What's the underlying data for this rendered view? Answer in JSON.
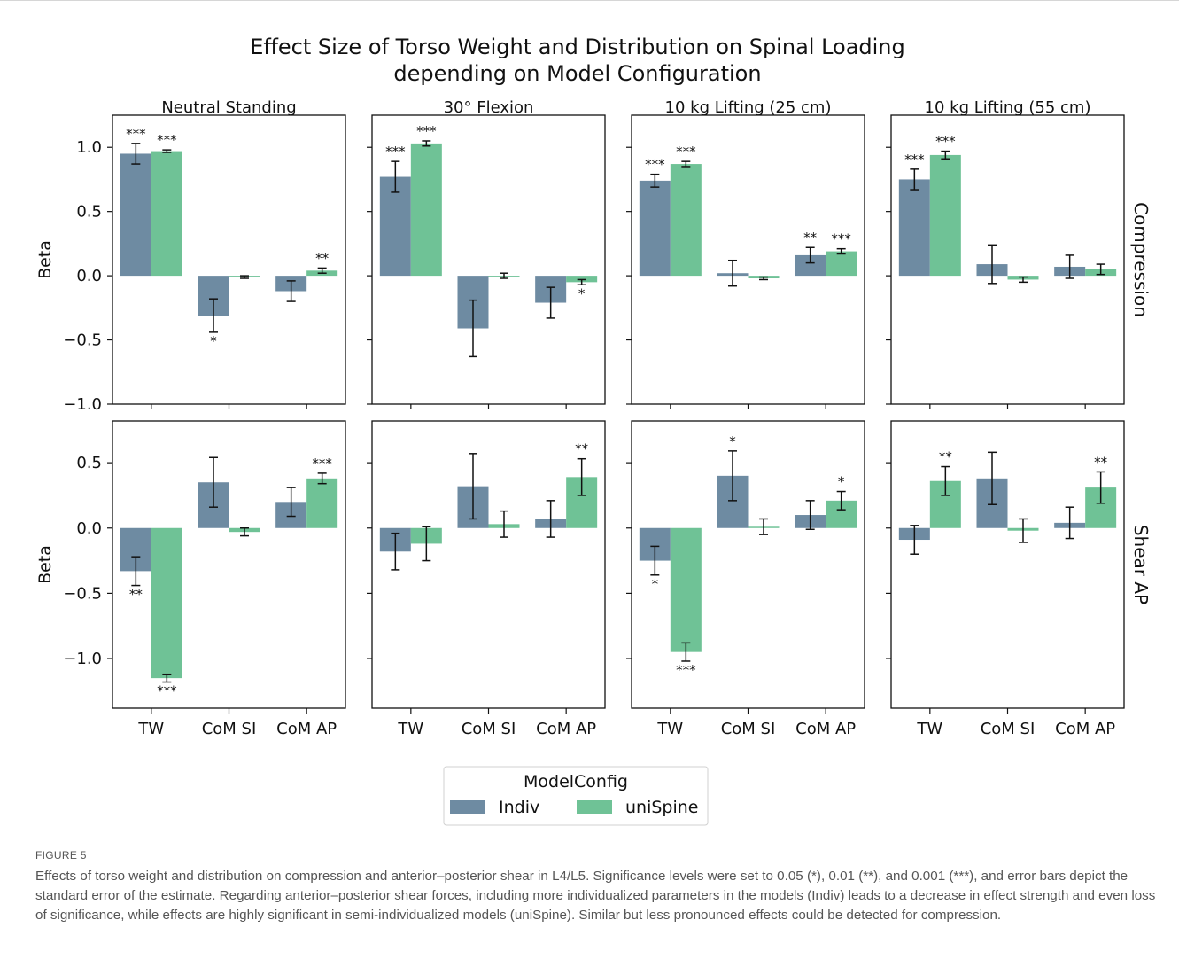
{
  "chart_data": {
    "type": "bar",
    "title": "Effect Size of Torso Weight and Distribution on Spinal Loading depending on Model Configuration",
    "title_lines": [
      "Effect Size of Torso Weight and Distribution on Spinal Loading",
      "depending on Model Configuration"
    ],
    "categories": [
      "TW",
      "CoM SI",
      "CoM AP"
    ],
    "columns": [
      "Neutral Standing",
      "30° Flexion",
      "10 kg Lifting (25 cm)",
      "10 kg Lifting (55 cm)"
    ],
    "rows": [
      "Compression",
      "Shear AP"
    ],
    "ylabel": "Beta",
    "series_names": [
      "Indiv",
      "uniSpine"
    ],
    "legend": {
      "title": "ModelConfig",
      "placement": "bottom-center"
    },
    "colors": {
      "Indiv": "#6e8ba2",
      "uniSpine": "#6fc296"
    },
    "grid": false,
    "panels": [
      {
        "row": "Compression",
        "column": "Neutral Standing",
        "ylim": [
          -1.0,
          1.25
        ],
        "yticks": [
          "1.0",
          "0.5",
          "0.0",
          "−0.5",
          "−1.0"
        ],
        "yticks_values": [
          1.0,
          0.5,
          0.0,
          -0.5,
          -1.0
        ],
        "series": [
          {
            "name": "Indiv",
            "values": [
              0.95,
              -0.31,
              -0.12
            ],
            "err": [
              0.08,
              0.13,
              0.08
            ],
            "sig": [
              "***",
              "*",
              ""
            ]
          },
          {
            "name": "uniSpine",
            "values": [
              0.97,
              -0.01,
              0.04
            ],
            "err": [
              0.01,
              0.01,
              0.02
            ],
            "sig": [
              "***",
              "",
              "**"
            ]
          }
        ]
      },
      {
        "row": "Compression",
        "column": "30° Flexion",
        "ylim": [
          -1.0,
          1.25
        ],
        "yticks": [
          "1.0",
          "0.5",
          "0.0",
          "−0.5",
          "−1.0"
        ],
        "yticks_values": [
          1.0,
          0.5,
          0.0,
          -0.5,
          -1.0
        ],
        "series": [
          {
            "name": "Indiv",
            "values": [
              0.77,
              -0.41,
              -0.21
            ],
            "err": [
              0.12,
              0.22,
              0.12
            ],
            "sig": [
              "***",
              "",
              ""
            ]
          },
          {
            "name": "uniSpine",
            "values": [
              1.03,
              0.0,
              -0.05
            ],
            "err": [
              0.02,
              0.02,
              0.02
            ],
            "sig": [
              "***",
              "",
              "*"
            ]
          }
        ]
      },
      {
        "row": "Compression",
        "column": "10 kg Lifting (25 cm)",
        "ylim": [
          -1.0,
          1.25
        ],
        "yticks": [
          "1.0",
          "0.5",
          "0.0",
          "−0.5",
          "−1.0"
        ],
        "yticks_values": [
          1.0,
          0.5,
          0.0,
          -0.5,
          -1.0
        ],
        "series": [
          {
            "name": "Indiv",
            "values": [
              0.74,
              0.02,
              0.16
            ],
            "err": [
              0.05,
              0.1,
              0.06
            ],
            "sig": [
              "***",
              "",
              "**"
            ]
          },
          {
            "name": "uniSpine",
            "values": [
              0.87,
              -0.02,
              0.19
            ],
            "err": [
              0.02,
              0.01,
              0.02
            ],
            "sig": [
              "***",
              "",
              "***"
            ]
          }
        ]
      },
      {
        "row": "Compression",
        "column": "10 kg Lifting (55 cm)",
        "ylim": [
          -1.0,
          1.25
        ],
        "yticks": [
          "1.0",
          "0.5",
          "0.0",
          "−0.5",
          "−1.0"
        ],
        "yticks_values": [
          1.0,
          0.5,
          0.0,
          -0.5,
          -1.0
        ],
        "series": [
          {
            "name": "Indiv",
            "values": [
              0.75,
              0.09,
              0.07
            ],
            "err": [
              0.08,
              0.15,
              0.09
            ],
            "sig": [
              "***",
              "",
              ""
            ]
          },
          {
            "name": "uniSpine",
            "values": [
              0.94,
              -0.03,
              0.05
            ],
            "err": [
              0.03,
              0.02,
              0.04
            ],
            "sig": [
              "***",
              "",
              ""
            ]
          }
        ]
      },
      {
        "row": "Shear AP",
        "column": "Neutral Standing",
        "ylim": [
          -1.38,
          0.82
        ],
        "yticks": [
          "0.5",
          "0.0",
          "−0.5",
          "−1.0"
        ],
        "yticks_values": [
          0.5,
          0.0,
          -0.5,
          -1.0
        ],
        "series": [
          {
            "name": "Indiv",
            "values": [
              -0.33,
              0.35,
              0.2
            ],
            "err": [
              0.11,
              0.19,
              0.11
            ],
            "sig": [
              "**",
              "",
              ""
            ]
          },
          {
            "name": "uniSpine",
            "values": [
              -1.15,
              -0.03,
              0.38
            ],
            "err": [
              0.03,
              0.03,
              0.04
            ],
            "sig": [
              "***",
              "",
              "***"
            ]
          }
        ]
      },
      {
        "row": "Shear AP",
        "column": "30° Flexion",
        "ylim": [
          -1.38,
          0.82
        ],
        "yticks": [
          "0.5",
          "0.0",
          "−0.5",
          "−1.0"
        ],
        "yticks_values": [
          0.5,
          0.0,
          -0.5,
          -1.0
        ],
        "series": [
          {
            "name": "Indiv",
            "values": [
              -0.18,
              0.32,
              0.07
            ],
            "err": [
              0.14,
              0.25,
              0.14
            ],
            "sig": [
              "",
              "",
              ""
            ]
          },
          {
            "name": "uniSpine",
            "values": [
              -0.12,
              0.03,
              0.39
            ],
            "err": [
              0.13,
              0.1,
              0.14
            ],
            "sig": [
              "",
              "",
              "**"
            ]
          }
        ]
      },
      {
        "row": "Shear AP",
        "column": "10 kg Lifting (25 cm)",
        "ylim": [
          -1.38,
          0.82
        ],
        "yticks": [
          "0.5",
          "0.0",
          "−0.5",
          "−1.0"
        ],
        "yticks_values": [
          0.5,
          0.0,
          -0.5,
          -1.0
        ],
        "series": [
          {
            "name": "Indiv",
            "values": [
              -0.25,
              0.4,
              0.1
            ],
            "err": [
              0.11,
              0.19,
              0.11
            ],
            "sig": [
              "*",
              "*",
              ""
            ]
          },
          {
            "name": "uniSpine",
            "values": [
              -0.95,
              0.01,
              0.21
            ],
            "err": [
              0.07,
              0.06,
              0.07
            ],
            "sig": [
              "***",
              "",
              "*"
            ]
          }
        ]
      },
      {
        "row": "Shear AP",
        "column": "10 kg Lifting (55 cm)",
        "ylim": [
          -1.38,
          0.82
        ],
        "yticks": [
          "0.5",
          "0.0",
          "−0.5",
          "−1.0"
        ],
        "yticks_values": [
          0.5,
          0.0,
          -0.5,
          -1.0
        ],
        "series": [
          {
            "name": "Indiv",
            "values": [
              -0.09,
              0.38,
              0.04
            ],
            "err": [
              0.11,
              0.2,
              0.12
            ],
            "sig": [
              "",
              "",
              ""
            ]
          },
          {
            "name": "uniSpine",
            "values": [
              0.36,
              -0.02,
              0.31
            ],
            "err": [
              0.11,
              0.09,
              0.12
            ],
            "sig": [
              "**",
              "",
              "**"
            ]
          }
        ]
      }
    ]
  },
  "caption": {
    "label": "FIGURE 5",
    "text": "Effects of torso weight and distribution on compression and anterior–posterior shear in L4/L5. Significance levels were set to 0.05 (*), 0.01 (**), and 0.001 (***), and error bars depict the standard error of the estimate. Regarding anterior–posterior shear forces, including more individualized parameters in the models (Indiv) leads to a decrease in effect strength and even loss of significance, while effects are highly significant in semi-individualized models (uniSpine). Similar but less pronounced effects could be detected for compression."
  }
}
